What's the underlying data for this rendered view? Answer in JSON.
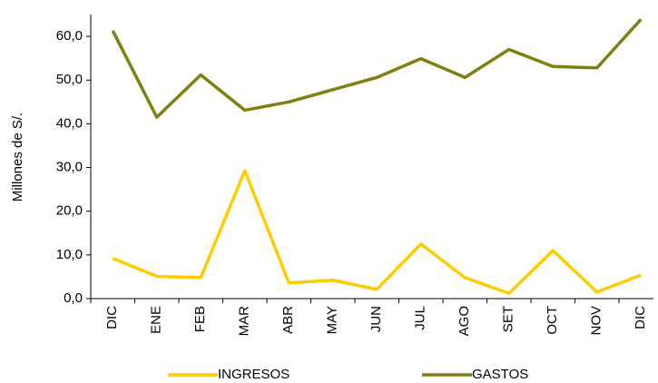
{
  "chart_data": {
    "type": "line",
    "ylabel": "Millones de S/.",
    "categories": [
      "DIC",
      "ENE",
      "FEB",
      "MAR",
      "ABR",
      "MAY",
      "JUN",
      "JUL",
      "AGO",
      "SET",
      "OCT",
      "NOV",
      "DIC"
    ],
    "series": [
      {
        "name": "INGRESOS",
        "color": "#ffcc00",
        "values": [
          9.2,
          5.1,
          4.8,
          29.3,
          3.6,
          4.2,
          2.1,
          12.5,
          4.8,
          1.2,
          11.0,
          1.5,
          5.4
        ]
      },
      {
        "name": "GASTOS",
        "color": "#808010",
        "values": [
          61.3,
          41.5,
          51.2,
          43.1,
          45.0,
          47.8,
          50.6,
          54.9,
          50.6,
          57.0,
          53.1,
          52.8,
          63.9
        ]
      }
    ],
    "ylim": [
      0,
      65
    ],
    "yticks": [
      {
        "value": 0,
        "label": "0,0"
      },
      {
        "value": 10,
        "label": "10,0"
      },
      {
        "value": 20,
        "label": "20,0"
      },
      {
        "value": 30,
        "label": "30,0"
      },
      {
        "value": 40,
        "label": "40,0"
      },
      {
        "value": 50,
        "label": "50,0"
      },
      {
        "value": 60,
        "label": "60,0"
      }
    ],
    "legend": "bottom"
  }
}
